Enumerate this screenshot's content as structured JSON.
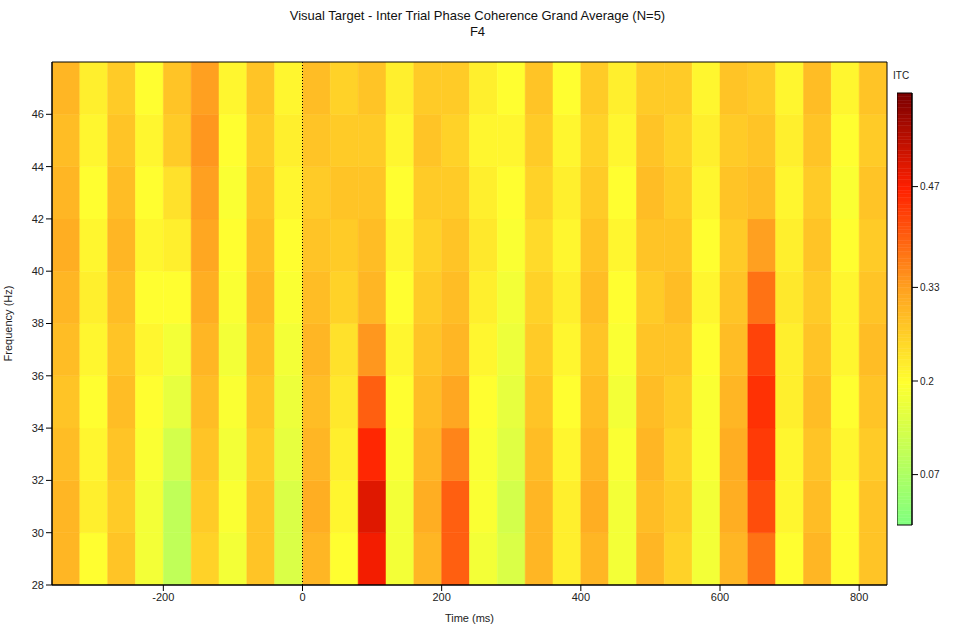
{
  "chart_data": {
    "type": "heatmap",
    "title": "Visual Target - Inter Trial Phase Coherence Grand Average (N=5)",
    "subtitle": "F4",
    "x_label": "Time (ms)",
    "y_label": "Frequency (Hz)",
    "xlim": [
      -360,
      840
    ],
    "ylim": [
      28,
      48
    ],
    "xticks": [
      -200,
      0,
      200,
      400,
      600,
      800
    ],
    "yticks": [
      28,
      30,
      32,
      34,
      36,
      38,
      40,
      42,
      44,
      46
    ],
    "vlines": [
      0
    ],
    "x_bins": [
      -360,
      -320,
      -280,
      -240,
      -200,
      -160,
      -120,
      -80,
      -40,
      0,
      40,
      80,
      120,
      160,
      200,
      240,
      280,
      320,
      360,
      400,
      440,
      480,
      520,
      560,
      600,
      640,
      680,
      720,
      760,
      800,
      840
    ],
    "y_bins": [
      28,
      30,
      32,
      34,
      36,
      38,
      40,
      42,
      44,
      46,
      48
    ],
    "cells": [
      [
        0.3,
        0.2,
        0.28,
        0.18,
        0.1,
        0.26,
        0.18,
        0.28,
        0.14,
        0.3,
        0.2,
        0.48,
        0.18,
        0.3,
        0.4,
        0.18,
        0.14,
        0.3,
        0.22,
        0.3,
        0.18,
        0.3,
        0.26,
        0.18,
        0.3,
        0.38,
        0.2,
        0.3,
        0.2,
        0.28
      ],
      [
        0.3,
        0.22,
        0.27,
        0.18,
        0.1,
        0.27,
        0.19,
        0.28,
        0.14,
        0.31,
        0.21,
        0.5,
        0.18,
        0.31,
        0.4,
        0.19,
        0.13,
        0.3,
        0.22,
        0.31,
        0.18,
        0.29,
        0.27,
        0.18,
        0.31,
        0.42,
        0.21,
        0.29,
        0.2,
        0.28
      ],
      [
        0.29,
        0.21,
        0.28,
        0.19,
        0.13,
        0.28,
        0.18,
        0.27,
        0.16,
        0.3,
        0.22,
        0.46,
        0.19,
        0.3,
        0.36,
        0.19,
        0.15,
        0.29,
        0.21,
        0.3,
        0.19,
        0.3,
        0.26,
        0.19,
        0.31,
        0.44,
        0.21,
        0.28,
        0.21,
        0.27
      ],
      [
        0.28,
        0.2,
        0.29,
        0.2,
        0.16,
        0.29,
        0.19,
        0.28,
        0.17,
        0.29,
        0.23,
        0.4,
        0.2,
        0.29,
        0.32,
        0.2,
        0.16,
        0.28,
        0.2,
        0.29,
        0.18,
        0.29,
        0.27,
        0.19,
        0.3,
        0.45,
        0.22,
        0.29,
        0.2,
        0.28
      ],
      [
        0.29,
        0.21,
        0.28,
        0.21,
        0.18,
        0.3,
        0.18,
        0.29,
        0.18,
        0.3,
        0.24,
        0.34,
        0.21,
        0.28,
        0.3,
        0.21,
        0.17,
        0.27,
        0.21,
        0.28,
        0.19,
        0.28,
        0.28,
        0.2,
        0.29,
        0.43,
        0.22,
        0.28,
        0.21,
        0.29
      ],
      [
        0.3,
        0.22,
        0.29,
        0.2,
        0.2,
        0.31,
        0.19,
        0.3,
        0.19,
        0.29,
        0.26,
        0.3,
        0.2,
        0.27,
        0.29,
        0.22,
        0.18,
        0.26,
        0.22,
        0.29,
        0.2,
        0.27,
        0.29,
        0.21,
        0.28,
        0.38,
        0.23,
        0.27,
        0.21,
        0.28
      ],
      [
        0.31,
        0.21,
        0.3,
        0.21,
        0.22,
        0.32,
        0.2,
        0.29,
        0.2,
        0.28,
        0.27,
        0.29,
        0.21,
        0.26,
        0.28,
        0.23,
        0.19,
        0.25,
        0.21,
        0.28,
        0.21,
        0.28,
        0.28,
        0.2,
        0.27,
        0.33,
        0.22,
        0.28,
        0.2,
        0.27
      ],
      [
        0.3,
        0.2,
        0.29,
        0.2,
        0.24,
        0.33,
        0.19,
        0.28,
        0.21,
        0.27,
        0.28,
        0.28,
        0.2,
        0.27,
        0.27,
        0.22,
        0.2,
        0.26,
        0.22,
        0.27,
        0.2,
        0.29,
        0.27,
        0.21,
        0.28,
        0.29,
        0.21,
        0.27,
        0.19,
        0.28
      ],
      [
        0.29,
        0.21,
        0.28,
        0.21,
        0.27,
        0.34,
        0.2,
        0.27,
        0.22,
        0.28,
        0.27,
        0.27,
        0.21,
        0.28,
        0.26,
        0.21,
        0.21,
        0.27,
        0.21,
        0.26,
        0.21,
        0.28,
        0.26,
        0.22,
        0.27,
        0.28,
        0.22,
        0.28,
        0.2,
        0.27
      ],
      [
        0.3,
        0.22,
        0.27,
        0.2,
        0.28,
        0.33,
        0.21,
        0.28,
        0.21,
        0.29,
        0.26,
        0.28,
        0.22,
        0.27,
        0.27,
        0.22,
        0.2,
        0.28,
        0.2,
        0.27,
        0.22,
        0.27,
        0.27,
        0.21,
        0.28,
        0.27,
        0.21,
        0.29,
        0.21,
        0.28
      ]
    ],
    "colorbar": {
      "label": "ITC",
      "range": [
        0,
        0.6
      ],
      "ticks": [
        0.07,
        0.2,
        0.33,
        0.47
      ]
    }
  }
}
